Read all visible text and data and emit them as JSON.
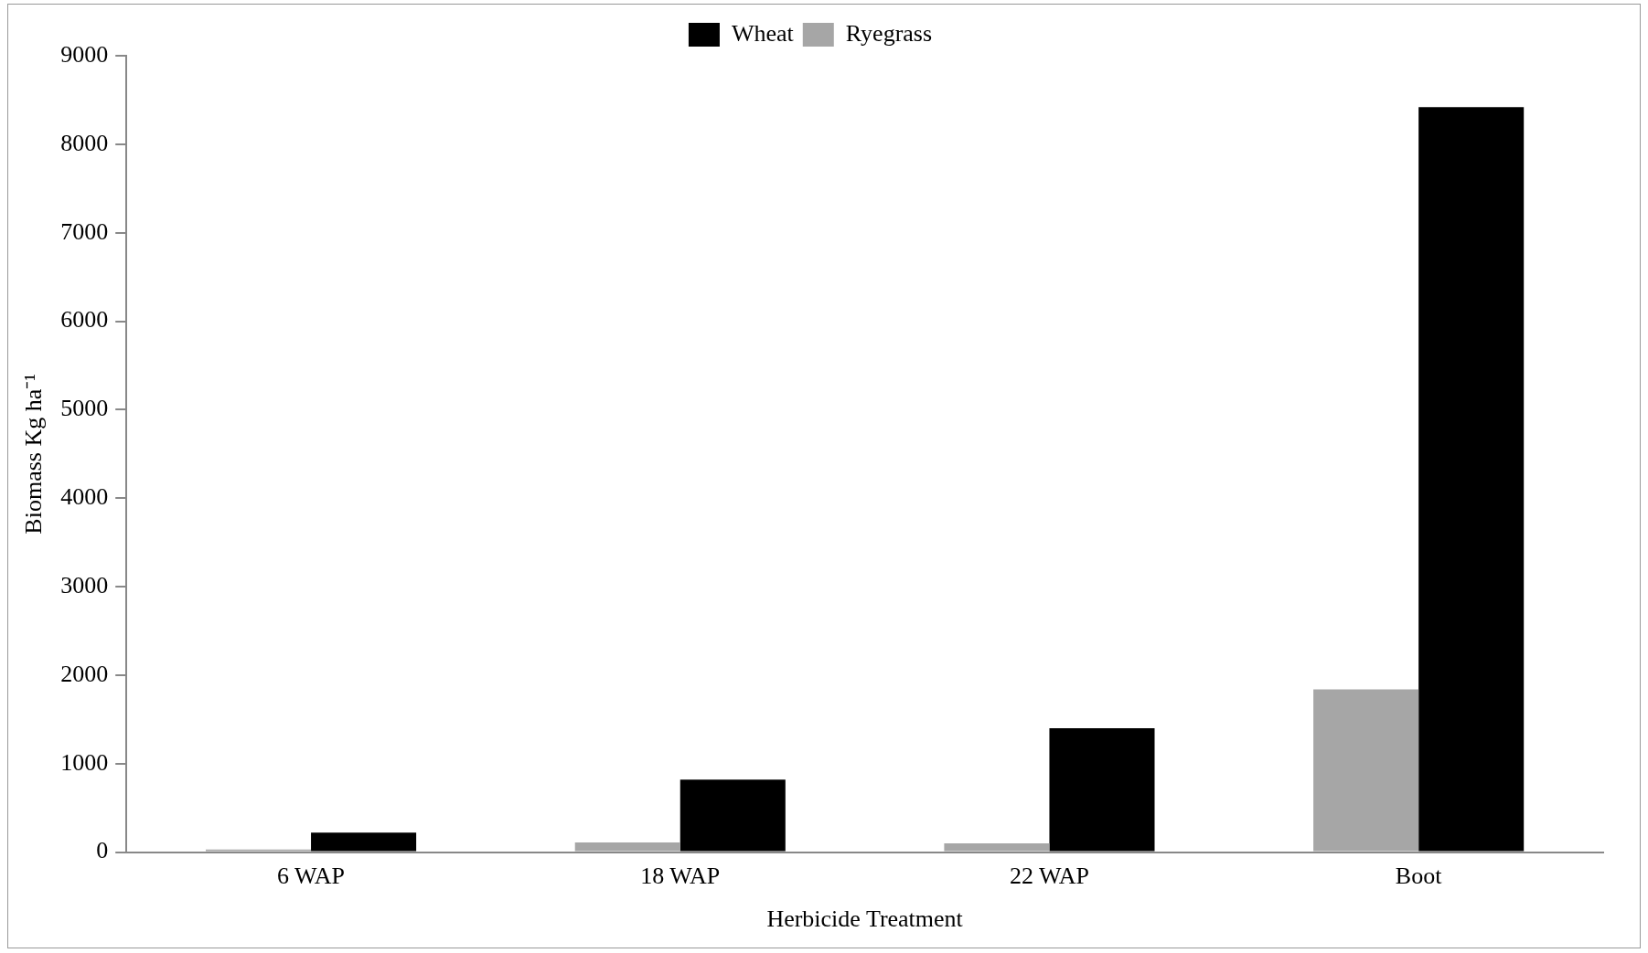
{
  "chart_data": {
    "type": "bar",
    "xlabel": "Herbicide Treatment",
    "ylabel": "Biomass Kg ha⁻¹",
    "categories": [
      "6 WAP",
      "18 WAP",
      "22 WAP",
      "Boot"
    ],
    "series": [
      {
        "name": "Ryegrass",
        "color": "#a6a6a6",
        "values": [
          30,
          110,
          100,
          1840
        ]
      },
      {
        "name": "Wheat",
        "color": "#000000",
        "values": [
          220,
          820,
          1400,
          8420
        ]
      }
    ],
    "ylim": [
      0,
      9000
    ],
    "yticks": [
      0,
      1000,
      2000,
      3000,
      4000,
      5000,
      6000,
      7000,
      8000,
      9000
    ],
    "grid": false,
    "legend": "top"
  }
}
